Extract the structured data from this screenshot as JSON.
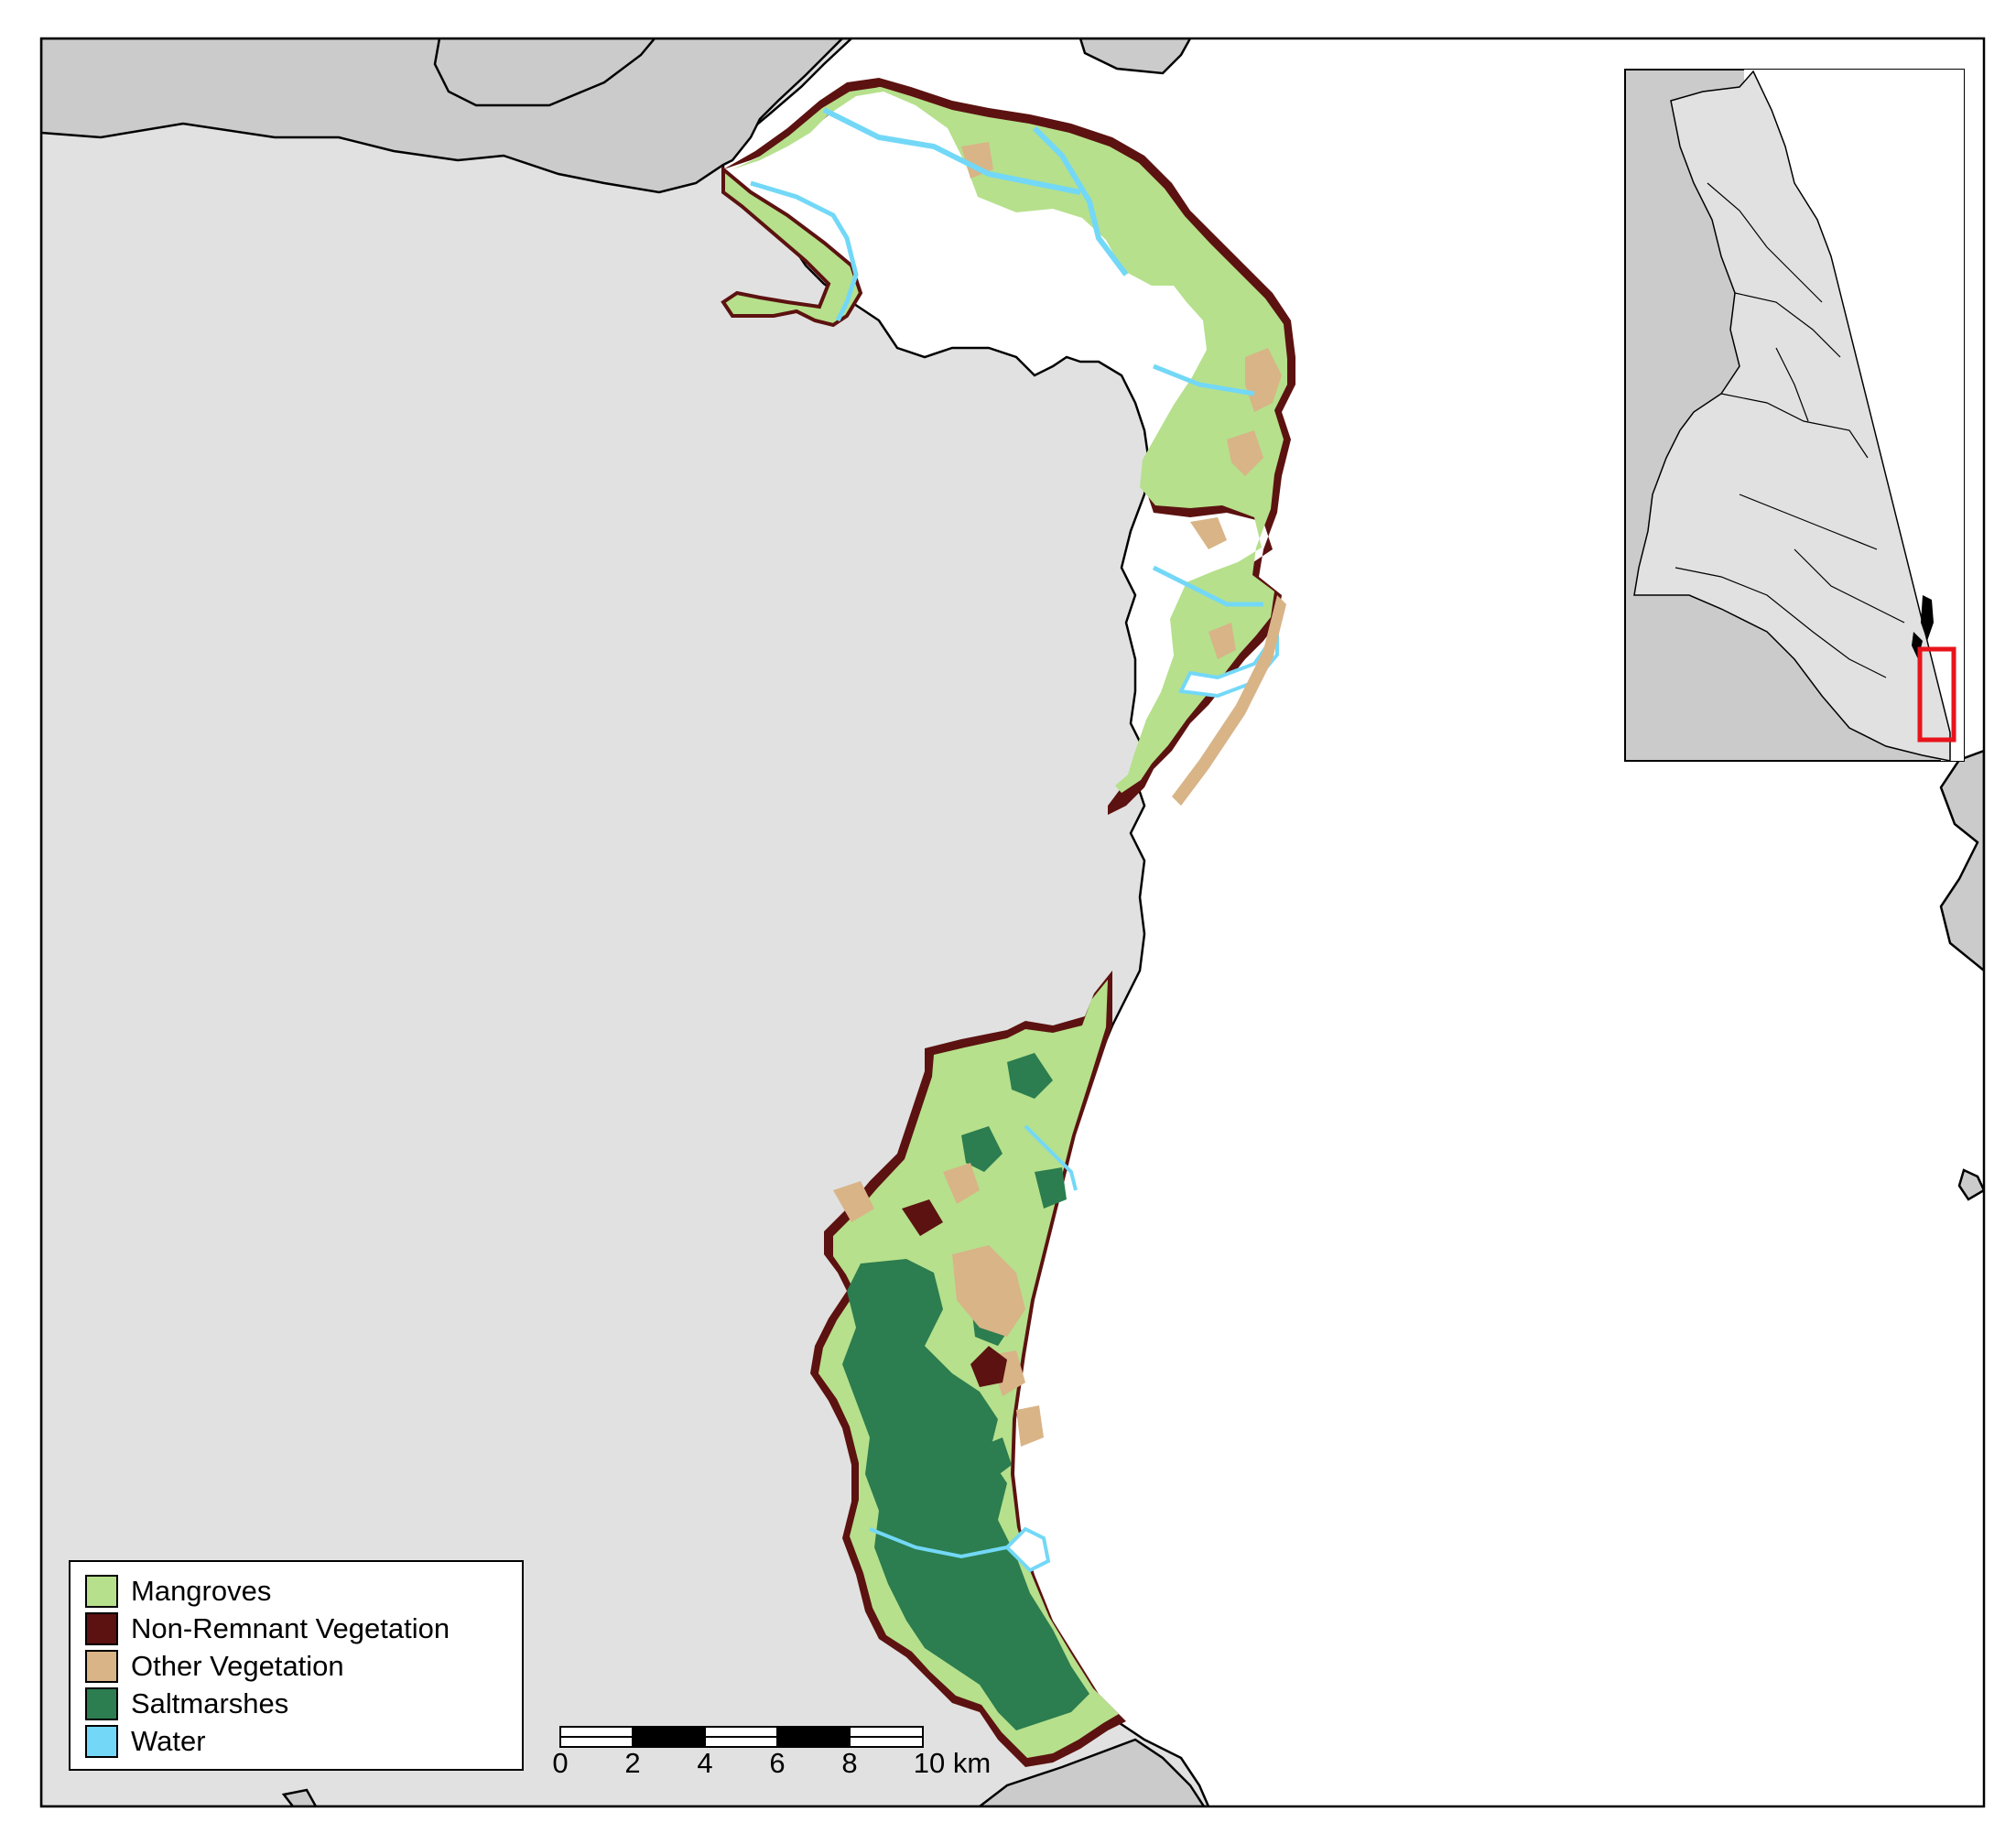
{
  "legend": {
    "items": [
      {
        "label": "Mangroves",
        "color": "#b6e08c"
      },
      {
        "label": "Non-Remnant Vegetation",
        "color": "#5c1210"
      },
      {
        "label": "Other Vegetation",
        "color": "#d8b487"
      },
      {
        "label": "Saltmarshes",
        "color": "#2c7d4f"
      },
      {
        "label": "Water",
        "color": "#73d8f7"
      }
    ]
  },
  "scale_bar": {
    "ticks": [
      "0",
      "2",
      "4",
      "6",
      "8",
      "10 km"
    ],
    "unit": "km"
  },
  "colors": {
    "land": "#e1e1e1",
    "other_land": "#cbcbcb",
    "sea": "#ffffff",
    "inset_highlight": "#e8131b"
  },
  "inset": {
    "highlight_icon": "red-rectangle-extent-indicator"
  }
}
